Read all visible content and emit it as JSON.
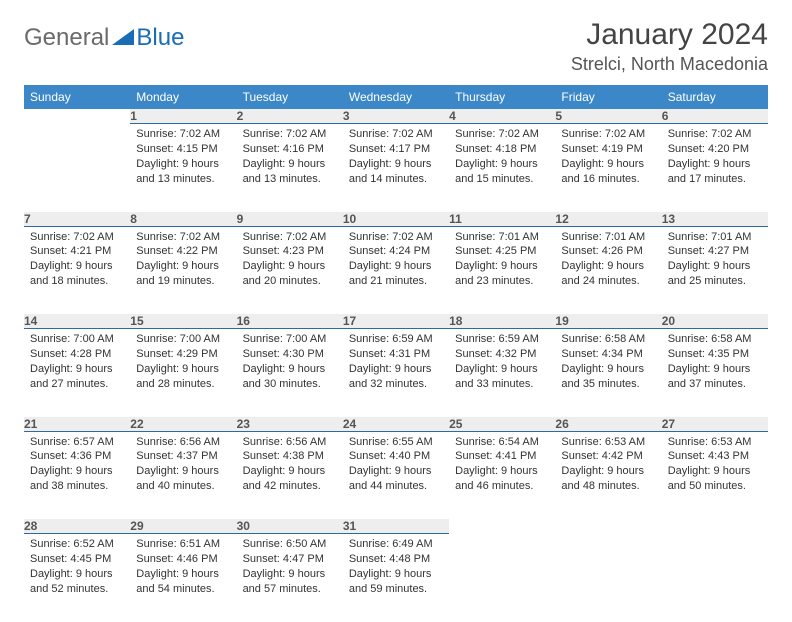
{
  "logo": {
    "part1": "General",
    "part2": "Blue"
  },
  "title": "January 2024",
  "location": "Strelci, North Macedonia",
  "colors": {
    "header_bg": "#3b87c8",
    "header_text": "#ffffff",
    "daynum_bg": "#eeeeee",
    "daynum_border": "#2c6aa0",
    "logo_gray": "#6a6a6a",
    "logo_blue": "#1a6db5"
  },
  "weekdays": [
    "Sunday",
    "Monday",
    "Tuesday",
    "Wednesday",
    "Thursday",
    "Friday",
    "Saturday"
  ],
  "weeks": [
    [
      null,
      {
        "n": "1",
        "sr": "7:02 AM",
        "ss": "4:15 PM",
        "dl": "9 hours and 13 minutes."
      },
      {
        "n": "2",
        "sr": "7:02 AM",
        "ss": "4:16 PM",
        "dl": "9 hours and 13 minutes."
      },
      {
        "n": "3",
        "sr": "7:02 AM",
        "ss": "4:17 PM",
        "dl": "9 hours and 14 minutes."
      },
      {
        "n": "4",
        "sr": "7:02 AM",
        "ss": "4:18 PM",
        "dl": "9 hours and 15 minutes."
      },
      {
        "n": "5",
        "sr": "7:02 AM",
        "ss": "4:19 PM",
        "dl": "9 hours and 16 minutes."
      },
      {
        "n": "6",
        "sr": "7:02 AM",
        "ss": "4:20 PM",
        "dl": "9 hours and 17 minutes."
      }
    ],
    [
      {
        "n": "7",
        "sr": "7:02 AM",
        "ss": "4:21 PM",
        "dl": "9 hours and 18 minutes."
      },
      {
        "n": "8",
        "sr": "7:02 AM",
        "ss": "4:22 PM",
        "dl": "9 hours and 19 minutes."
      },
      {
        "n": "9",
        "sr": "7:02 AM",
        "ss": "4:23 PM",
        "dl": "9 hours and 20 minutes."
      },
      {
        "n": "10",
        "sr": "7:02 AM",
        "ss": "4:24 PM",
        "dl": "9 hours and 21 minutes."
      },
      {
        "n": "11",
        "sr": "7:01 AM",
        "ss": "4:25 PM",
        "dl": "9 hours and 23 minutes."
      },
      {
        "n": "12",
        "sr": "7:01 AM",
        "ss": "4:26 PM",
        "dl": "9 hours and 24 minutes."
      },
      {
        "n": "13",
        "sr": "7:01 AM",
        "ss": "4:27 PM",
        "dl": "9 hours and 25 minutes."
      }
    ],
    [
      {
        "n": "14",
        "sr": "7:00 AM",
        "ss": "4:28 PM",
        "dl": "9 hours and 27 minutes."
      },
      {
        "n": "15",
        "sr": "7:00 AM",
        "ss": "4:29 PM",
        "dl": "9 hours and 28 minutes."
      },
      {
        "n": "16",
        "sr": "7:00 AM",
        "ss": "4:30 PM",
        "dl": "9 hours and 30 minutes."
      },
      {
        "n": "17",
        "sr": "6:59 AM",
        "ss": "4:31 PM",
        "dl": "9 hours and 32 minutes."
      },
      {
        "n": "18",
        "sr": "6:59 AM",
        "ss": "4:32 PM",
        "dl": "9 hours and 33 minutes."
      },
      {
        "n": "19",
        "sr": "6:58 AM",
        "ss": "4:34 PM",
        "dl": "9 hours and 35 minutes."
      },
      {
        "n": "20",
        "sr": "6:58 AM",
        "ss": "4:35 PM",
        "dl": "9 hours and 37 minutes."
      }
    ],
    [
      {
        "n": "21",
        "sr": "6:57 AM",
        "ss": "4:36 PM",
        "dl": "9 hours and 38 minutes."
      },
      {
        "n": "22",
        "sr": "6:56 AM",
        "ss": "4:37 PM",
        "dl": "9 hours and 40 minutes."
      },
      {
        "n": "23",
        "sr": "6:56 AM",
        "ss": "4:38 PM",
        "dl": "9 hours and 42 minutes."
      },
      {
        "n": "24",
        "sr": "6:55 AM",
        "ss": "4:40 PM",
        "dl": "9 hours and 44 minutes."
      },
      {
        "n": "25",
        "sr": "6:54 AM",
        "ss": "4:41 PM",
        "dl": "9 hours and 46 minutes."
      },
      {
        "n": "26",
        "sr": "6:53 AM",
        "ss": "4:42 PM",
        "dl": "9 hours and 48 minutes."
      },
      {
        "n": "27",
        "sr": "6:53 AM",
        "ss": "4:43 PM",
        "dl": "9 hours and 50 minutes."
      }
    ],
    [
      {
        "n": "28",
        "sr": "6:52 AM",
        "ss": "4:45 PM",
        "dl": "9 hours and 52 minutes."
      },
      {
        "n": "29",
        "sr": "6:51 AM",
        "ss": "4:46 PM",
        "dl": "9 hours and 54 minutes."
      },
      {
        "n": "30",
        "sr": "6:50 AM",
        "ss": "4:47 PM",
        "dl": "9 hours and 57 minutes."
      },
      {
        "n": "31",
        "sr": "6:49 AM",
        "ss": "4:48 PM",
        "dl": "9 hours and 59 minutes."
      },
      null,
      null,
      null
    ]
  ],
  "labels": {
    "sunrise": "Sunrise:",
    "sunset": "Sunset:",
    "daylight": "Daylight:"
  }
}
